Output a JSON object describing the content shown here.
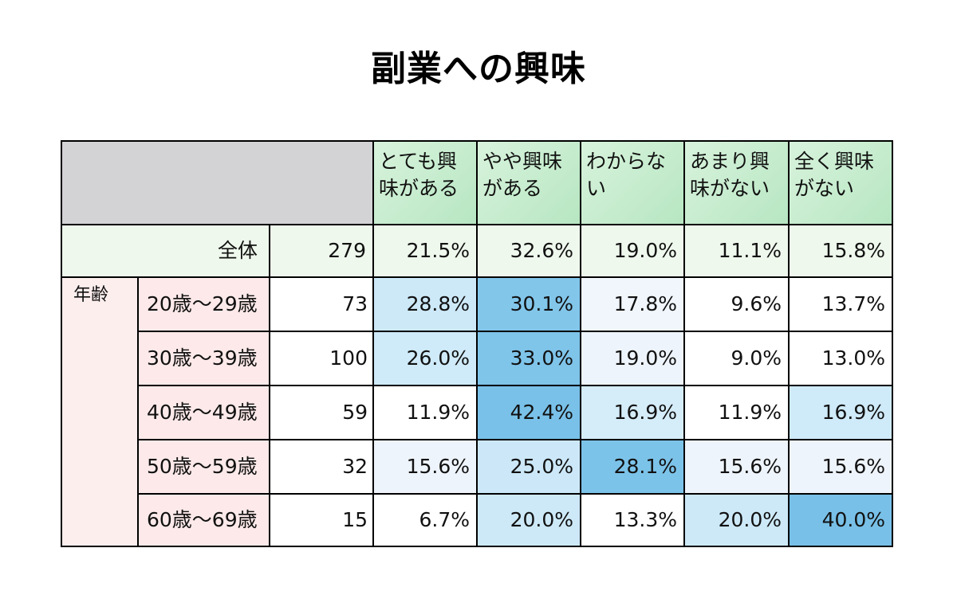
{
  "title": "副業への興味",
  "chart_data": {
    "type": "heatmap",
    "title": "副業への興味",
    "columns": [
      "とても興味がある",
      "やや興味がある",
      "わからない",
      "あまり興味がない",
      "全く興味がない"
    ],
    "total": {
      "label": "全体",
      "n": 279,
      "values": [
        21.5,
        32.6,
        19.0,
        11.1,
        15.8
      ]
    },
    "group_label": "年齢",
    "rows": [
      {
        "label": "20歳～29歳",
        "n": 73,
        "values": [
          28.8,
          30.1,
          17.8,
          9.6,
          13.7
        ]
      },
      {
        "label": "30歳～39歳",
        "n": 100,
        "values": [
          26.0,
          33.0,
          19.0,
          9.0,
          13.0
        ]
      },
      {
        "label": "40歳～49歳",
        "n": 59,
        "values": [
          11.9,
          42.4,
          16.9,
          11.9,
          16.9
        ]
      },
      {
        "label": "50歳～59歳",
        "n": 32,
        "values": [
          15.6,
          25.0,
          28.1,
          15.6,
          15.6
        ]
      },
      {
        "label": "60歳～69歳",
        "n": 15,
        "values": [
          6.7,
          20.0,
          13.3,
          20.0,
          40.0
        ]
      }
    ],
    "unit": "%"
  },
  "table": {
    "headers": {
      "c0": "とても興\n味がある",
      "c1": "やや興味\nがある",
      "c2": "わからな\nい",
      "c3": "あまり興\n味がない",
      "c4": "全く興味\nがない"
    },
    "total": {
      "label": "全体",
      "n": "279",
      "v0": "21.5%",
      "v1": "32.6%",
      "v2": "19.0%",
      "v3": "11.1%",
      "v4": "15.8%"
    },
    "group_label": "年齢",
    "rows": [
      {
        "label": "20歳～29歳",
        "n": "73",
        "v0": "28.8%",
        "v1": "30.1%",
        "v2": "17.8%",
        "v3": "9.6%",
        "v4": "13.7%",
        "c0": "#cde9f8",
        "c1": "#82c6ea",
        "c2": "#f0f6fc",
        "c3": "#ffffff",
        "c4": "#ffffff"
      },
      {
        "label": "30歳～39歳",
        "n": "100",
        "v0": "26.0%",
        "v1": "33.0%",
        "v2": "19.0%",
        "v3": "9.0%",
        "v4": "13.0%",
        "c0": "#cfeaf8",
        "c1": "#7fc4e9",
        "c2": "#eef4fb",
        "c3": "#ffffff",
        "c4": "#ffffff"
      },
      {
        "label": "40歳～49歳",
        "n": "59",
        "v0": "11.9%",
        "v1": "42.4%",
        "v2": "16.9%",
        "v3": "11.9%",
        "v4": "16.9%",
        "c0": "#ffffff",
        "c1": "#79c1e8",
        "c2": "#d5ecf9",
        "c3": "#ffffff",
        "c4": "#cfeaf9"
      },
      {
        "label": "50歳～59歳",
        "n": "32",
        "v0": "15.6%",
        "v1": "25.0%",
        "v2": "28.1%",
        "v3": "15.6%",
        "v4": "15.6%",
        "c0": "#eef4fb",
        "c1": "#cce8f8",
        "c2": "#7cc3e9",
        "c3": "#eef4fb",
        "c4": "#eef4fb"
      },
      {
        "label": "60歳～69歳",
        "n": "15",
        "v0": "6.7%",
        "v1": "20.0%",
        "v2": "13.3%",
        "v3": "20.0%",
        "v4": "40.0%",
        "c0": "#ffffff",
        "c1": "#cde9f8",
        "c2": "#ffffff",
        "c3": "#cde9f8",
        "c4": "#78c0e7"
      }
    ]
  }
}
